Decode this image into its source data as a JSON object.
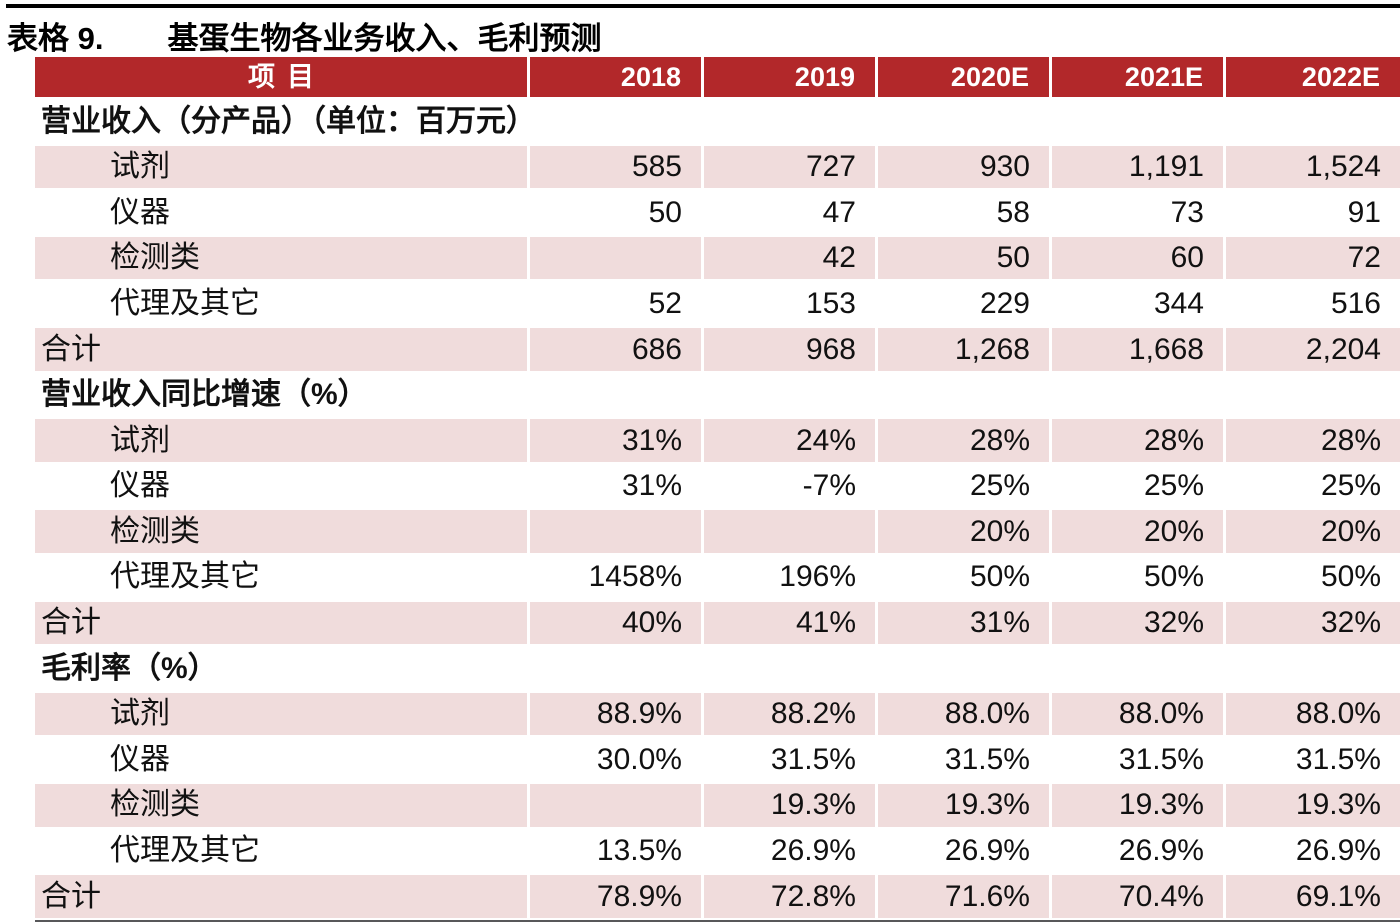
{
  "caption": {
    "label": "表格 9.",
    "title": "基蛋生物各业务收入、毛利预测"
  },
  "colors": {
    "header_bg": "#b2282a",
    "header_fg": "#ffffff",
    "row_alt_bg": "#f0dcdc",
    "top_rule": "#000000",
    "bottom_rule": "#58585a"
  },
  "table": {
    "columns": [
      "项目",
      "2018",
      "2019",
      "2020E",
      "2021E",
      "2022E"
    ],
    "rows": [
      {
        "type": "section",
        "label": "营业收入（分产品）（单位：百万元）",
        "values": [
          "",
          "",
          "",
          "",
          ""
        ]
      },
      {
        "type": "item",
        "label": "试剂",
        "values": [
          "585",
          "727",
          "930",
          "1,191",
          "1,524"
        ]
      },
      {
        "type": "item",
        "label": "仪器",
        "values": [
          "50",
          "47",
          "58",
          "73",
          "91"
        ]
      },
      {
        "type": "item",
        "label": "检测类",
        "values": [
          "",
          "42",
          "50",
          "60",
          "72"
        ]
      },
      {
        "type": "item",
        "label": "代理及其它",
        "values": [
          "52",
          "153",
          "229",
          "344",
          "516"
        ]
      },
      {
        "type": "total",
        "label": "合计",
        "values": [
          "686",
          "968",
          "1,268",
          "1,668",
          "2,204"
        ]
      },
      {
        "type": "section",
        "label": "营业收入同比增速（%）",
        "values": [
          "",
          "",
          "",
          "",
          ""
        ]
      },
      {
        "type": "item",
        "label": "试剂",
        "values": [
          "31%",
          "24%",
          "28%",
          "28%",
          "28%"
        ]
      },
      {
        "type": "item",
        "label": "仪器",
        "values": [
          "31%",
          "-7%",
          "25%",
          "25%",
          "25%"
        ]
      },
      {
        "type": "item",
        "label": "检测类",
        "values": [
          "",
          "",
          "20%",
          "20%",
          "20%"
        ]
      },
      {
        "type": "item",
        "label": "代理及其它",
        "values": [
          "1458%",
          "196%",
          "50%",
          "50%",
          "50%"
        ]
      },
      {
        "type": "total",
        "label": "合计",
        "values": [
          "40%",
          "41%",
          "31%",
          "32%",
          "32%"
        ]
      },
      {
        "type": "section",
        "label": "毛利率（%）",
        "values": [
          "",
          "",
          "",
          "",
          ""
        ]
      },
      {
        "type": "item",
        "label": "试剂",
        "values": [
          "88.9%",
          "88.2%",
          "88.0%",
          "88.0%",
          "88.0%"
        ]
      },
      {
        "type": "item",
        "label": "仪器",
        "values": [
          "30.0%",
          "31.5%",
          "31.5%",
          "31.5%",
          "31.5%"
        ]
      },
      {
        "type": "item",
        "label": "检测类",
        "values": [
          "",
          "19.3%",
          "19.3%",
          "19.3%",
          "19.3%"
        ]
      },
      {
        "type": "item",
        "label": "代理及其它",
        "values": [
          "13.5%",
          "26.9%",
          "26.9%",
          "26.9%",
          "26.9%"
        ]
      },
      {
        "type": "total",
        "label": "合计",
        "values": [
          "78.9%",
          "72.8%",
          "71.6%",
          "70.4%",
          "69.1%"
        ]
      }
    ]
  }
}
